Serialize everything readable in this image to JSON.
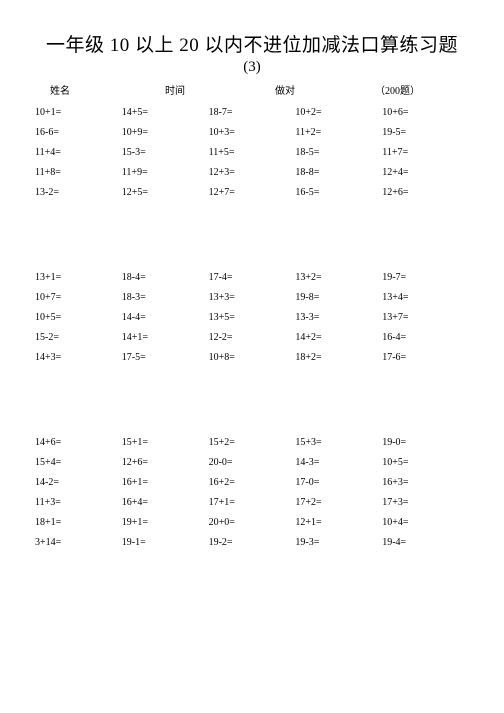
{
  "title": "一年级 10 以上 20 以内不进位加减法口算练习题",
  "subtitle": "(3)",
  "header": {
    "name": "姓名",
    "time": "时间",
    "correct": "做对",
    "count": "（200题）"
  },
  "groups": [
    [
      [
        "10+1=",
        "14+5=",
        "18-7=",
        "10+2=",
        "10+6="
      ],
      [
        "16-6=",
        "10+9=",
        "10+3=",
        "11+2=",
        "19-5="
      ],
      [
        "11+4=",
        "15-3=",
        "11+5=",
        "18-5=",
        "11+7="
      ],
      [
        "11+8=",
        "11+9=",
        "12+3=",
        "18-8=",
        "12+4="
      ],
      [
        "13-2=",
        "12+5=",
        "12+7=",
        "16-5=",
        "12+6="
      ]
    ],
    [
      [
        "13+1=",
        "18-4=",
        "17-4=",
        "13+2=",
        "19-7="
      ],
      [
        "10+7=",
        "18-3=",
        "13+3=",
        "19-8=",
        "13+4="
      ],
      [
        "10+5=",
        "14-4=",
        "13+5=",
        "13-3=",
        "13+7="
      ],
      [
        "15-2=",
        "14+1=",
        "12-2=",
        "14+2=",
        "16-4="
      ],
      [
        "14+3=",
        "17-5=",
        "10+8=",
        "18+2=",
        "17-6="
      ]
    ],
    [
      [
        "14+6=",
        "15+1=",
        "15+2=",
        "15+3=",
        "19-0="
      ],
      [
        "15+4=",
        "12+6=",
        "20-0=",
        "14-3=",
        "10+5="
      ],
      [
        "14-2=",
        "16+1=",
        "16+2=",
        "17-0=",
        "16+3="
      ],
      [
        "11+3=",
        "16+4=",
        "17+1=",
        "17+2=",
        "17+3="
      ],
      [
        "18+1=",
        "19+1=",
        "20+0=",
        "12+1=",
        "10+4="
      ],
      [
        "3+14=",
        "19-1=",
        "19-2=",
        "19-3=",
        "19-4="
      ]
    ]
  ],
  "colors": {
    "background": "#ffffff",
    "text": "#000000"
  },
  "fontsize": {
    "title": 19,
    "subtitle": 15,
    "header": 10,
    "cell": 10
  }
}
